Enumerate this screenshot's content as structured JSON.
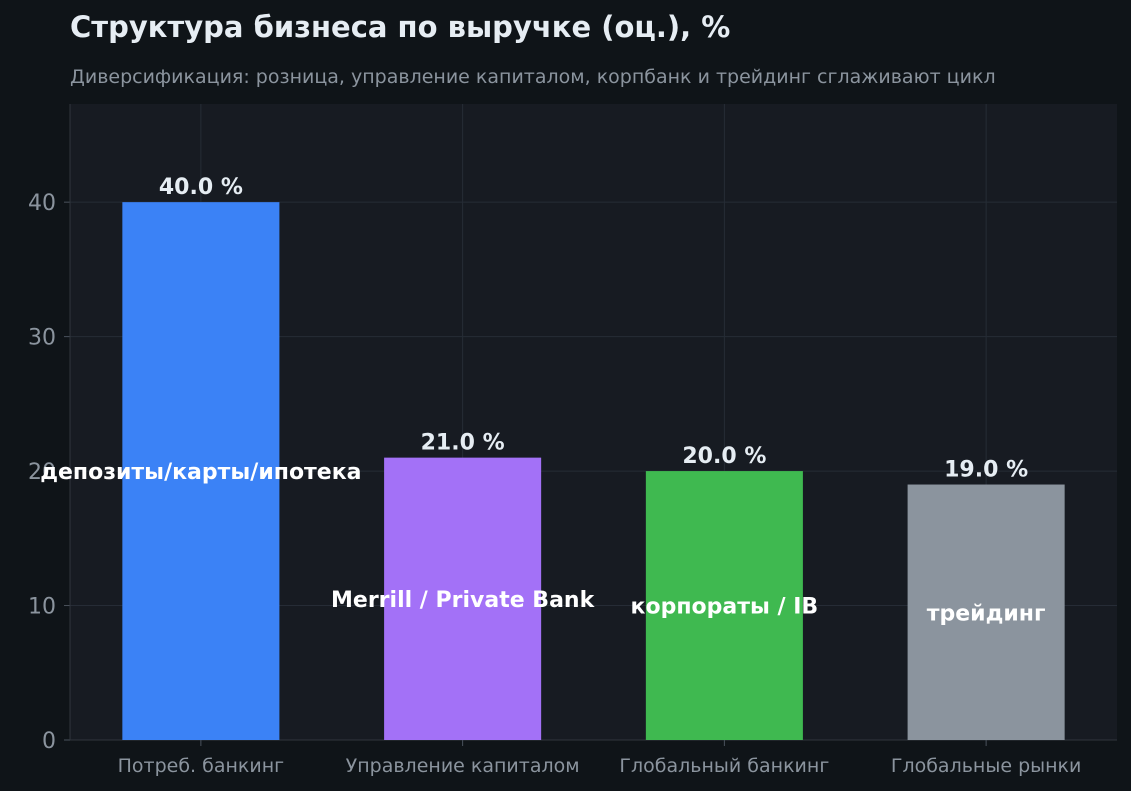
{
  "header": {
    "title": "Структура бизнеса по выручке (оц.), %",
    "subtitle": "Диверсификация: розница, управление капиталом, корпбанк и трейдинг сглаживают цикл"
  },
  "colors": {
    "background": "#0f1418",
    "plot_background": "#171b22",
    "grid": "#262c36",
    "axis_text": "#8b949e",
    "label_text": "#e6edf3"
  },
  "chart_data": {
    "type": "bar",
    "categories": [
      "Потреб. банкинг",
      "Управление капиталом",
      "Глобальный банкинг",
      "Глобальные рынки"
    ],
    "values": [
      40.0,
      21.0,
      20.0,
      19.0
    ],
    "value_labels": [
      "40.0 %",
      "21.0 %",
      "20.0 %",
      "19.0 %"
    ],
    "inner_labels": [
      "депозиты/карты/ипотека",
      "Merrill / Private Bank",
      "корпораты / IB",
      "трейдинг"
    ],
    "bar_colors": [
      "#3b82f6",
      "#a371f7",
      "#3fb950",
      "#8b949e"
    ],
    "title": "Структура бизнеса по выручке (оц.), %",
    "xlabel": "",
    "ylabel": "",
    "ylim": [
      0,
      47.3
    ],
    "yticks": [
      0,
      10,
      20,
      30,
      40
    ],
    "grid": true
  }
}
